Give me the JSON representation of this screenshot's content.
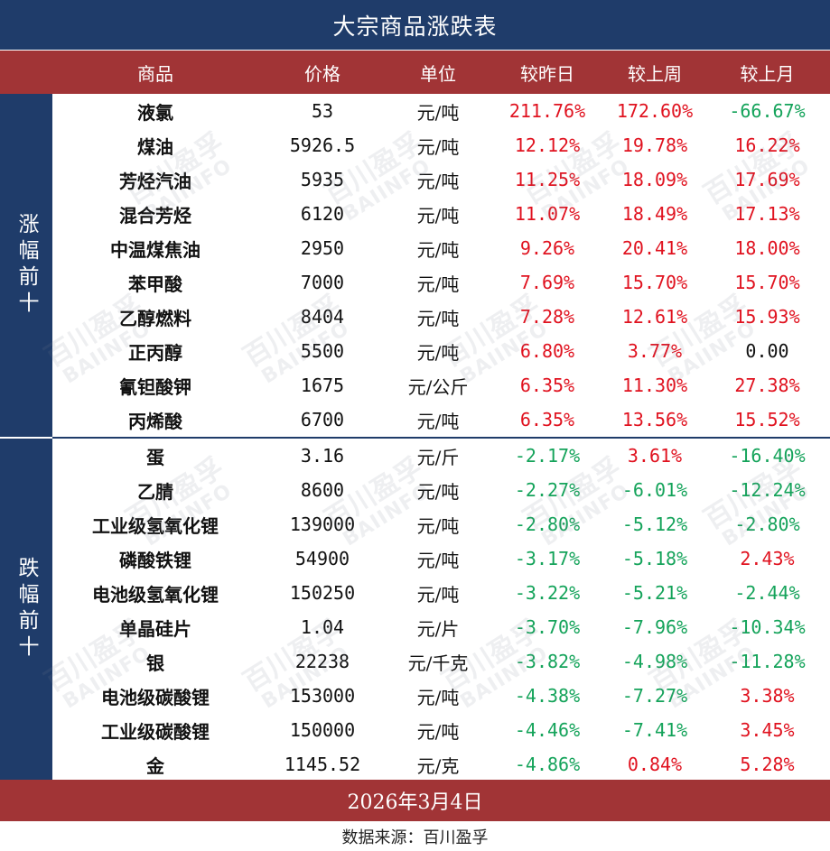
{
  "title": "大宗商品涨跌表",
  "headers": {
    "name": "商品",
    "price": "价格",
    "unit": "单位",
    "day": "较昨日",
    "week": "较上周",
    "month": "较上月"
  },
  "groups": {
    "up_label": "涨幅前十",
    "down_label": "跌幅前十"
  },
  "rows": [
    {
      "name": "液氯",
      "price": "53",
      "unit": "元/吨",
      "day": "211.76%",
      "week": "172.60%",
      "month": "-66.67%"
    },
    {
      "name": "煤油",
      "price": "5926.5",
      "unit": "元/吨",
      "day": "12.12%",
      "week": "19.78%",
      "month": "16.22%"
    },
    {
      "name": "芳烃汽油",
      "price": "5935",
      "unit": "元/吨",
      "day": "11.25%",
      "week": "18.09%",
      "month": "17.69%"
    },
    {
      "name": "混合芳烃",
      "price": "6120",
      "unit": "元/吨",
      "day": "11.07%",
      "week": "18.49%",
      "month": "17.13%"
    },
    {
      "name": "中温煤焦油",
      "price": "2950",
      "unit": "元/吨",
      "day": "9.26%",
      "week": "20.41%",
      "month": "18.00%"
    },
    {
      "name": "苯甲酸",
      "price": "7000",
      "unit": "元/吨",
      "day": "7.69%",
      "week": "15.70%",
      "month": "15.70%"
    },
    {
      "name": "乙醇燃料",
      "price": "8404",
      "unit": "元/吨",
      "day": "7.28%",
      "week": "12.61%",
      "month": "15.93%"
    },
    {
      "name": "正丙醇",
      "price": "5500",
      "unit": "元/吨",
      "day": "6.80%",
      "week": "3.77%",
      "month": "0.00"
    },
    {
      "name": "氰钽酸钾",
      "price": "1675",
      "unit": "元/公斤",
      "day": "6.35%",
      "week": "11.30%",
      "month": "27.38%"
    },
    {
      "name": "丙烯酸",
      "price": "6700",
      "unit": "元/吨",
      "day": "6.35%",
      "week": "13.56%",
      "month": "15.52%"
    },
    {
      "name": "蛋",
      "price": "3.16",
      "unit": "元/斤",
      "day": "-2.17%",
      "week": "3.61%",
      "month": "-16.40%"
    },
    {
      "name": "乙腈",
      "price": "8600",
      "unit": "元/吨",
      "day": "-2.27%",
      "week": "-6.01%",
      "month": "-12.24%"
    },
    {
      "name": "工业级氢氧化锂",
      "price": "139000",
      "unit": "元/吨",
      "day": "-2.80%",
      "week": "-5.12%",
      "month": "-2.80%"
    },
    {
      "name": "磷酸铁锂",
      "price": "54900",
      "unit": "元/吨",
      "day": "-3.17%",
      "week": "-5.18%",
      "month": "2.43%"
    },
    {
      "name": "电池级氢氧化锂",
      "price": "150250",
      "unit": "元/吨",
      "day": "-3.22%",
      "week": "-5.21%",
      "month": "-2.44%"
    },
    {
      "name": "单晶硅片",
      "price": "1.04",
      "unit": "元/片",
      "day": "-3.70%",
      "week": "-7.96%",
      "month": "-10.34%"
    },
    {
      "name": "银",
      "price": "22238",
      "unit": "元/千克",
      "day": "-3.82%",
      "week": "-4.98%",
      "month": "-11.28%"
    },
    {
      "name": "电池级碳酸锂",
      "price": "153000",
      "unit": "元/吨",
      "day": "-4.38%",
      "week": "-7.27%",
      "month": "3.38%"
    },
    {
      "name": "工业级碳酸锂",
      "price": "150000",
      "unit": "元/吨",
      "day": "-4.46%",
      "week": "-7.41%",
      "month": "3.45%"
    },
    {
      "name": "金",
      "price": "1145.52",
      "unit": "元/克",
      "day": "-4.86%",
      "week": "0.84%",
      "month": "5.28%"
    }
  ],
  "date": "2026年3月4日",
  "source": "数据来源：百川盈孚",
  "watermark": {
    "cn": "百川盈孚",
    "en": "BAIINFO"
  },
  "colors": {
    "navy": "#1f3c6a",
    "red_band": "#a13436",
    "positive": "#e0121f",
    "negative": "#14a35a",
    "flat": "#111111"
  }
}
